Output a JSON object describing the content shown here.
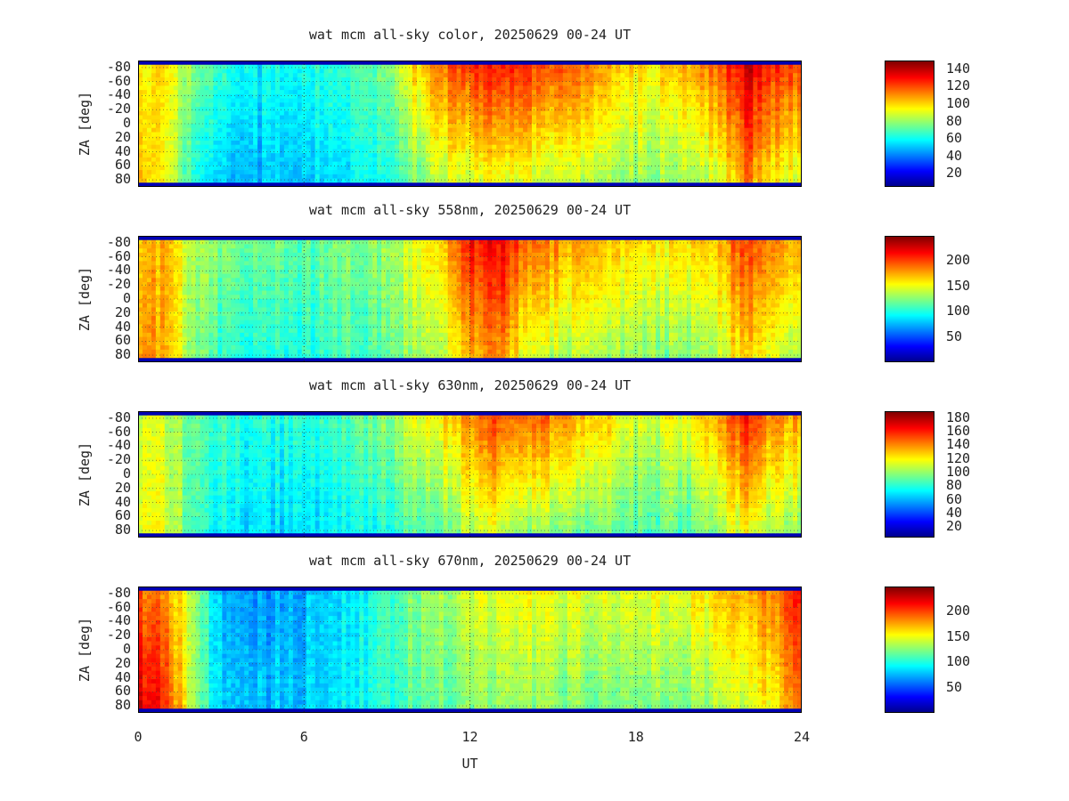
{
  "chart_data": [
    {
      "type": "heatmap",
      "title": "wat mcm all-sky color, 20250629 00-24 UT",
      "ylabel": "ZA [deg]",
      "xlabel": "UT",
      "x_ticks": [
        "0",
        "6",
        "12",
        "18",
        "24"
      ],
      "xlim": [
        0,
        24
      ],
      "y_ticks": [
        "-80",
        "-60",
        "-40",
        "-20",
        "0",
        "20",
        "40",
        "60",
        "80"
      ],
      "ylim": [
        -90,
        90
      ],
      "colorbar_ticks": [
        "20",
        "40",
        "60",
        "80",
        "100",
        "120",
        "140"
      ],
      "colorbar_range": [
        5,
        150
      ],
      "colormap": "jet",
      "grid": true,
      "intensity_profile": {
        "ut": [
          0,
          1,
          2,
          3,
          4,
          5,
          6,
          7,
          8,
          9,
          10,
          11,
          12,
          13,
          14,
          15,
          16,
          17,
          18,
          19,
          20,
          21,
          22,
          23,
          24
        ],
        "upper_za": [
          95,
          100,
          80,
          65,
          60,
          60,
          62,
          65,
          70,
          80,
          100,
          115,
          125,
          130,
          125,
          120,
          115,
          105,
          100,
          100,
          105,
          120,
          140,
          125,
          120
        ],
        "lower_za": [
          105,
          95,
          65,
          50,
          48,
          50,
          52,
          55,
          58,
          65,
          75,
          85,
          90,
          95,
          90,
          85,
          85,
          80,
          80,
          80,
          80,
          90,
          115,
          95,
          90
        ]
      }
    },
    {
      "type": "heatmap",
      "title": "wat mcm all-sky 558nm, 20250629 00-24 UT",
      "ylabel": "ZA [deg]",
      "x_ticks": [
        "0",
        "6",
        "12",
        "18",
        "24"
      ],
      "xlim": [
        0,
        24
      ],
      "y_ticks": [
        "-80",
        "-60",
        "-40",
        "-20",
        "0",
        "20",
        "40",
        "60",
        "80"
      ],
      "ylim": [
        -90,
        90
      ],
      "colorbar_ticks": [
        "50",
        "100",
        "150",
        "200"
      ],
      "colorbar_range": [
        0,
        250
      ],
      "colormap": "jet",
      "grid": true,
      "intensity_profile": {
        "ut": [
          0,
          1,
          2,
          3,
          4,
          5,
          6,
          7,
          8,
          9,
          10,
          11,
          12,
          13,
          14,
          15,
          16,
          17,
          18,
          19,
          20,
          21,
          22,
          23,
          24
        ],
        "upper_za": [
          170,
          175,
          140,
          125,
          120,
          118,
          118,
          120,
          125,
          135,
          150,
          170,
          215,
          225,
          195,
          185,
          175,
          165,
          160,
          160,
          165,
          175,
          205,
          185,
          180
        ],
        "lower_za": [
          185,
          175,
          130,
          105,
          100,
          100,
          102,
          105,
          110,
          120,
          130,
          140,
          175,
          190,
          150,
          140,
          135,
          130,
          125,
          125,
          125,
          140,
          170,
          145,
          140
        ]
      }
    },
    {
      "type": "heatmap",
      "title": "wat mcm all-sky 630nm, 20250629 00-24 UT",
      "ylabel": "ZA [deg]",
      "x_ticks": [
        "0",
        "6",
        "12",
        "18",
        "24"
      ],
      "xlim": [
        0,
        24
      ],
      "y_ticks": [
        "-80",
        "-60",
        "-40",
        "-20",
        "0",
        "20",
        "40",
        "60",
        "80"
      ],
      "ylim": [
        -90,
        90
      ],
      "colorbar_ticks": [
        "20",
        "40",
        "60",
        "80",
        "100",
        "120",
        "140",
        "160",
        "180"
      ],
      "colorbar_range": [
        5,
        190
      ],
      "colormap": "jet",
      "grid": true,
      "intensity_profile": {
        "ut": [
          0,
          1,
          2,
          3,
          4,
          5,
          6,
          7,
          8,
          9,
          10,
          11,
          12,
          13,
          14,
          15,
          16,
          17,
          18,
          19,
          20,
          21,
          22,
          23,
          24
        ],
        "upper_za": [
          110,
          110,
          95,
          85,
          80,
          80,
          82,
          85,
          90,
          100,
          115,
          125,
          140,
          155,
          150,
          145,
          135,
          125,
          115,
          115,
          120,
          135,
          165,
          140,
          135
        ],
        "lower_za": [
          115,
          115,
          90,
          75,
          70,
          68,
          70,
          72,
          75,
          80,
          90,
          95,
          105,
          115,
          105,
          100,
          95,
          95,
          90,
          90,
          90,
          100,
          120,
          105,
          100
        ]
      }
    },
    {
      "type": "heatmap",
      "title": "wat mcm all-sky 670nm, 20250629 00-24 UT",
      "ylabel": "ZA [deg]",
      "x_ticks": [
        "0",
        "6",
        "12",
        "18",
        "24"
      ],
      "xlim": [
        0,
        24
      ],
      "y_ticks": [
        "-80",
        "-60",
        "-40",
        "-20",
        "0",
        "20",
        "40",
        "60",
        "80"
      ],
      "ylim": [
        -90,
        90
      ],
      "colorbar_ticks": [
        "50",
        "100",
        "150",
        "200"
      ],
      "colorbar_range": [
        0,
        250
      ],
      "colormap": "jet",
      "grid": true,
      "intensity_profile": {
        "ut": [
          0,
          1,
          2,
          3,
          4,
          5,
          6,
          7,
          8,
          9,
          10,
          11,
          12,
          13,
          14,
          15,
          16,
          17,
          18,
          19,
          20,
          21,
          22,
          23,
          24
        ],
        "upper_za": [
          195,
          190,
          130,
          80,
          70,
          70,
          75,
          85,
          95,
          110,
          125,
          135,
          145,
          150,
          150,
          150,
          150,
          150,
          150,
          150,
          155,
          165,
          175,
          190,
          220
        ],
        "lower_za": [
          225,
          215,
          130,
          85,
          80,
          80,
          82,
          88,
          95,
          105,
          115,
          120,
          125,
          130,
          128,
          126,
          125,
          125,
          125,
          125,
          128,
          135,
          145,
          160,
          195
        ]
      }
    }
  ]
}
